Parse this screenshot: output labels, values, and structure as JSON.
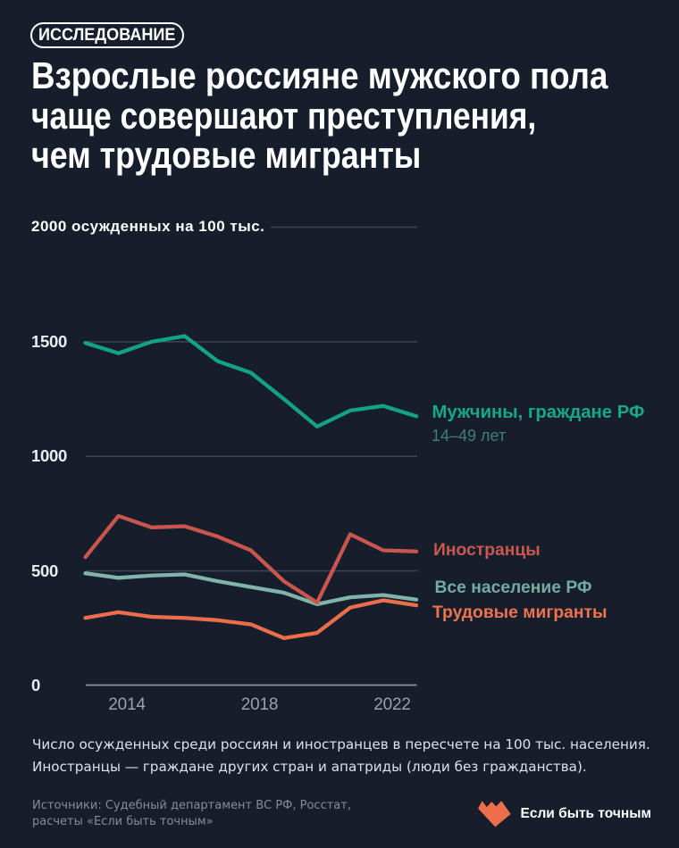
{
  "page": {
    "background": "#161d2b"
  },
  "badge": {
    "label": "ИССЛЕДОВАНИЕ"
  },
  "title": {
    "lines": [
      "Взрослые россияне мужского пола",
      "чаще совершают преступления,",
      "чем трудовые мигранты"
    ]
  },
  "chart_data": {
    "type": "line",
    "title": "Взрослые россияне мужского пола чаще совершают преступления, чем трудовые мигранты",
    "unit_label": "2000 осужденных на 100 тыс.",
    "x": [
      2013,
      2014,
      2015,
      2016,
      2017,
      2018,
      2019,
      2020,
      2021,
      2022,
      2023
    ],
    "x_tick_years": [
      2014,
      2018,
      2022
    ],
    "y_ticks": [
      1500,
      1000,
      500,
      0
    ],
    "ylim": [
      0,
      2000
    ],
    "grid": "horizontal",
    "legend_position": "right",
    "series": [
      {
        "name": "Мужчины, граждане РФ",
        "sublabel": "14–49 лет",
        "color": "#13a284",
        "label_color": "#17a78a",
        "sublabel_color": "#3e8071",
        "values": [
          1495,
          1450,
          1500,
          1525,
          1415,
          1365,
          1250,
          1130,
          1200,
          1220,
          1175
        ]
      },
      {
        "name": "Иностранцы",
        "color": "#c8554e",
        "label_color": "#cb584f",
        "values": [
          560,
          740,
          690,
          695,
          650,
          590,
          455,
          362,
          660,
          590,
          585
        ]
      },
      {
        "name": "Все население РФ",
        "color": "#80b3a9",
        "label_color": "#74aba0",
        "values": [
          490,
          470,
          480,
          485,
          455,
          430,
          405,
          355,
          385,
          395,
          375
        ]
      },
      {
        "name": "Трудовые мигранты",
        "color": "#eb6e4b",
        "label_color": "#ee734e",
        "values": [
          295,
          320,
          300,
          295,
          285,
          267,
          207,
          230,
          340,
          372,
          350
        ]
      }
    ]
  },
  "footnote": {
    "lines": [
      "Число осужденных среди россиян и иностранцев в пересчете на 100 тыс. населения.",
      "Иностранцы — граждане других стран и апатриды (люди без гражданства)."
    ]
  },
  "sources": {
    "lines": [
      "Источники: Судебный департамент ВС РФ, Росстат,",
      "расчеты «Если быть точным»"
    ]
  },
  "logo": {
    "label": "Если быть точным",
    "color": "#ed6e4b"
  }
}
